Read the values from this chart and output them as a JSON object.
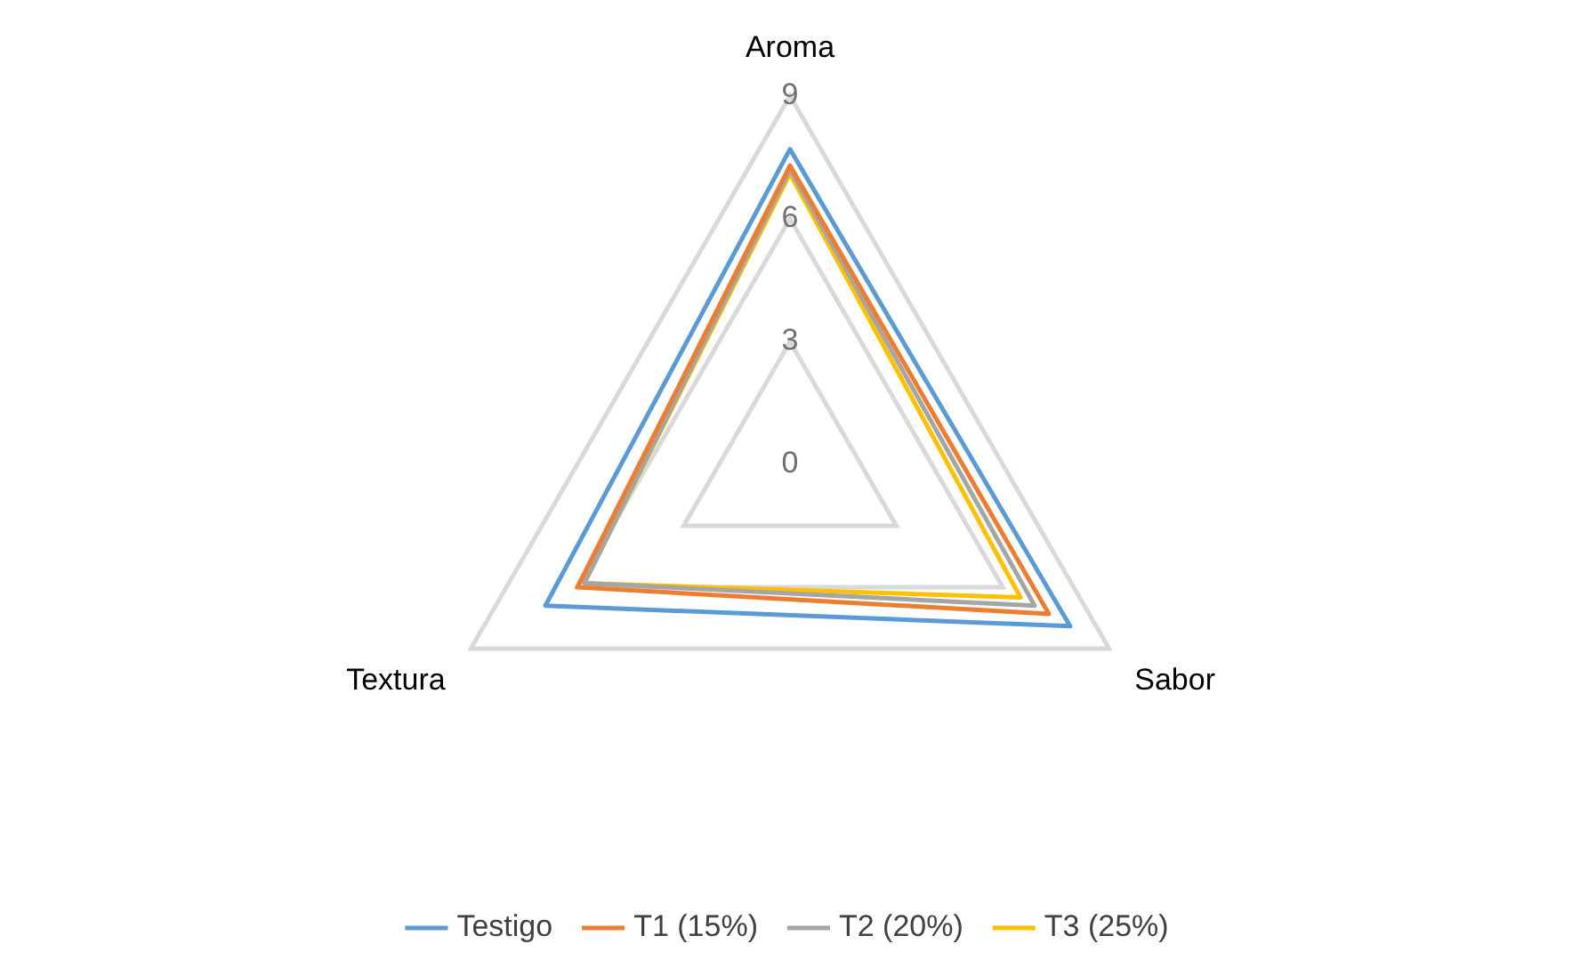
{
  "chart_data": {
    "type": "radar",
    "categories": [
      "Aroma",
      "Sabor",
      "Textura"
    ],
    "series": [
      {
        "name": "Testigo",
        "color": "#5b9bd5",
        "values": [
          7.7,
          7.9,
          6.9
        ]
      },
      {
        "name": "T1 (15%)",
        "color": "#ed7d31",
        "values": [
          7.3,
          7.3,
          6.0
        ]
      },
      {
        "name": "T2 (20%)",
        "color": "#a5a5a5",
        "values": [
          7.2,
          6.9,
          5.8
        ]
      },
      {
        "name": "T3 (25%)",
        "color": "#ffc000",
        "values": [
          7.1,
          6.5,
          5.8
        ]
      }
    ],
    "ylim": [
      0,
      9
    ],
    "yticks": [
      0,
      3,
      6,
      9
    ],
    "legend": "bottom",
    "marker": "none",
    "grid": true
  }
}
